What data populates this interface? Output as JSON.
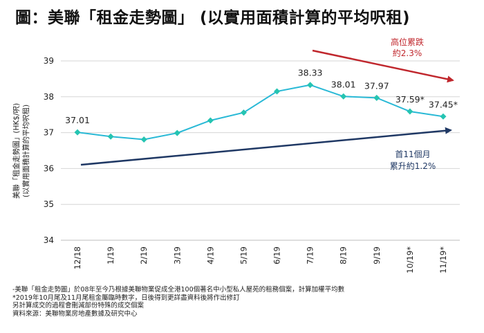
{
  "title": "圖：美聯「租金走勢圖」 (以實用面積計算的平均呎租)",
  "chart_data": {
    "type": "line",
    "ylabel_line1": "美聯「租金走勢圖」(HK$/呎)",
    "ylabel_line2": "(以實用面積計算的平均呎租)",
    "ylim": [
      34,
      39
    ],
    "yticks": [
      "34",
      "35",
      "36",
      "37",
      "38",
      "39"
    ],
    "categories": [
      "12/18",
      "1/19",
      "2/19",
      "3/19",
      "4/19",
      "5/19",
      "6/19",
      "7/19",
      "8/19",
      "9/19",
      "10/19*",
      "11/19*"
    ],
    "values": [
      37.01,
      36.89,
      36.81,
      36.99,
      37.34,
      37.56,
      38.15,
      38.33,
      38.01,
      37.97,
      37.59,
      37.45
    ],
    "data_labels": [
      {
        "index": 0,
        "text": "37.01"
      },
      {
        "index": 7,
        "text": "38.33"
      },
      {
        "index": 8,
        "text": "38.01"
      },
      {
        "index": 9,
        "text": "37.97"
      },
      {
        "index": 10,
        "text": "37.59*"
      },
      {
        "index": 11,
        "text": "37.45*"
      }
    ],
    "series_color": "#29b9d6",
    "marker_color": "#25c4b2",
    "annotations": {
      "down": {
        "line1": "高位累跌",
        "line2": "約2.3%",
        "color": "#c0272d"
      },
      "up": {
        "line1": "首11個月",
        "line2": "累升約1.2%",
        "color": "#1f3864"
      }
    }
  },
  "notes": [
    "-美聯「租金走勢圖」於08年至今乃根據美聯物業促成全港100個著名中小型私人屋苑的租務個案，計算加權平均數",
    "*2019年10月尾及11月尾租金屬臨時數字，日後得到更詳盡資料後將作出修訂",
    "另計算成交的過程會刪減部份特殊的成交個案",
    "資料來源：美聯物業房地產數據及研究中心"
  ]
}
